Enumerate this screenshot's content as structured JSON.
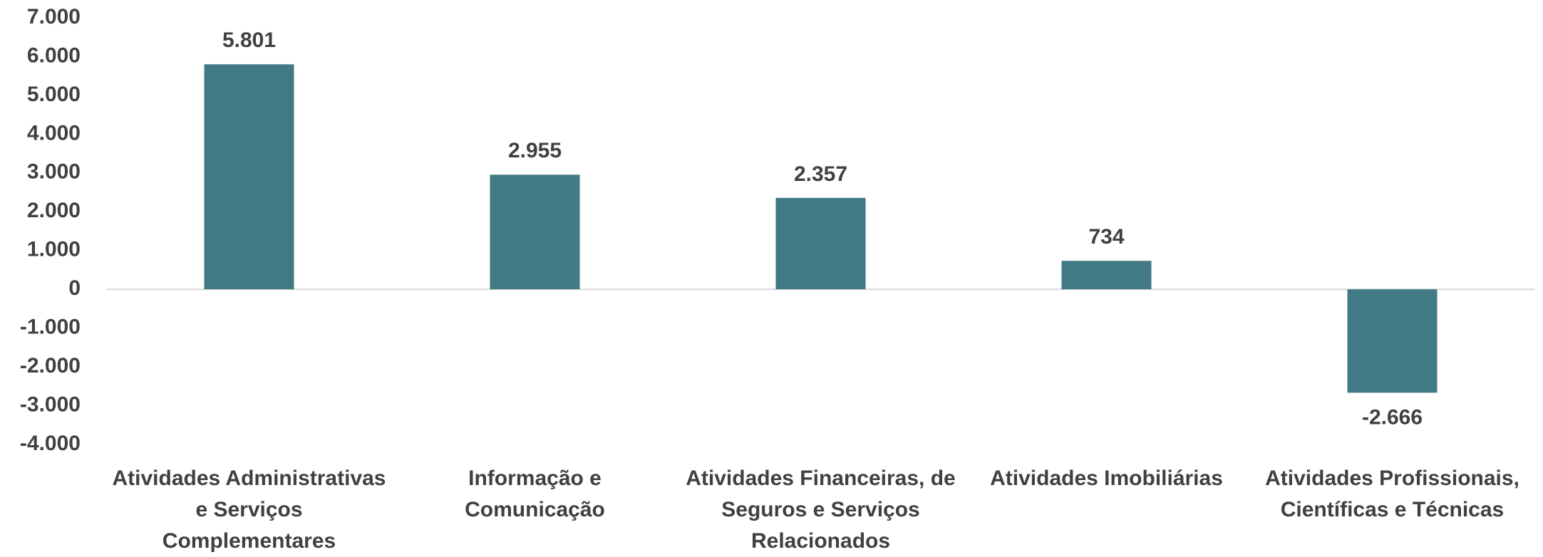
{
  "chart_data": {
    "type": "bar",
    "categories": [
      "Atividades Administrativas e Serviços Complementares",
      "Informação e Comunicação",
      "Atividades Financeiras, de Seguros e Serviços Relacionados",
      "Atividades Imobiliárias",
      "Atividades Profissionais, Científicas e Técnicas"
    ],
    "values": [
      5801,
      2955,
      2357,
      734,
      -2666
    ],
    "value_labels": [
      "5.801",
      "2.955",
      "2.357",
      "734",
      "-2.666"
    ],
    "color": "#417a84",
    "ylim": [
      -4000,
      7000
    ],
    "yticks": [
      {
        "value": -4000,
        "label": "-4.000"
      },
      {
        "value": -3000,
        "label": "-3.000"
      },
      {
        "value": -2000,
        "label": "-2.000"
      },
      {
        "value": -1000,
        "label": "-1.000"
      },
      0,
      {
        "value": 1000,
        "label": "1.000"
      },
      {
        "value": 2000,
        "label": "2.000"
      },
      {
        "value": 3000,
        "label": "3.000"
      },
      {
        "value": 4000,
        "label": "4.000"
      },
      {
        "value": 5000,
        "label": "5.000"
      },
      {
        "value": 6000,
        "label": "6.000"
      },
      {
        "value": 7000,
        "label": "7.000"
      }
    ],
    "grid": false
  }
}
